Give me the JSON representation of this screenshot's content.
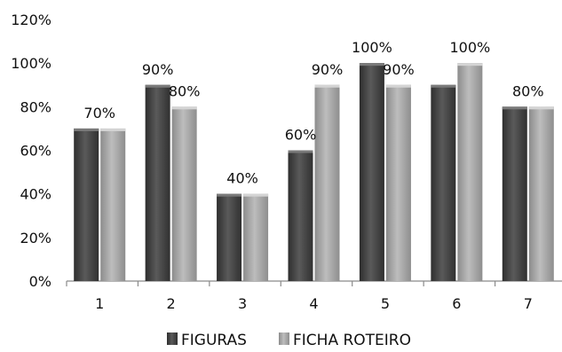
{
  "chart_data": {
    "type": "bar",
    "categories": [
      "1",
      "2",
      "3",
      "4",
      "5",
      "6",
      "7"
    ],
    "series": [
      {
        "name": "FIGURAS",
        "values": [
          70,
          90,
          40,
          60,
          100,
          90,
          80
        ],
        "color": "#4a4a4a"
      },
      {
        "name": "FICHA ROTEIRO",
        "values": [
          70,
          80,
          40,
          90,
          90,
          100,
          80
        ],
        "color": "#a6a6a6"
      }
    ],
    "data_labels": [
      {
        "category": "1",
        "text": "70%"
      },
      {
        "category": "2",
        "series": 0,
        "text": "90%"
      },
      {
        "category": "2",
        "series": 1,
        "text": "80%"
      },
      {
        "category": "3",
        "text": "40%"
      },
      {
        "category": "4",
        "series": 0,
        "text": "60%"
      },
      {
        "category": "4",
        "series": 1,
        "text": "90%"
      },
      {
        "category": "5",
        "series": 0,
        "text": "100%"
      },
      {
        "category": "5",
        "series": 1,
        "text": "90%"
      },
      {
        "category": "6",
        "series": 1,
        "text": "100%"
      },
      {
        "category": "7",
        "text": "80%"
      }
    ],
    "yticks": [
      "0%",
      "20%",
      "40%",
      "60%",
      "80%",
      "100%",
      "120%"
    ],
    "ylim": [
      0,
      120
    ],
    "ytick_step": 20,
    "grid": false,
    "legend_position": "bottom"
  }
}
